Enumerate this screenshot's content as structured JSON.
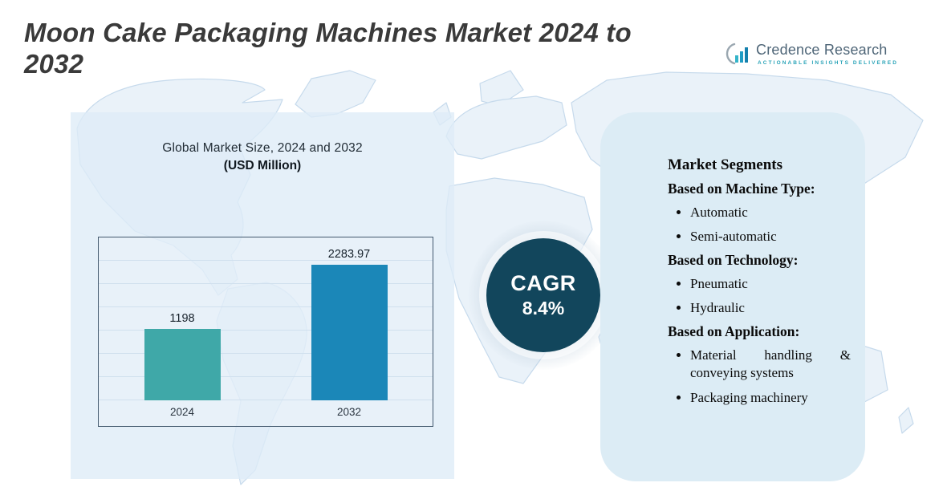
{
  "header": {
    "title": "Moon Cake Packaging Machines Market 2024 to\n2032"
  },
  "logo": {
    "brand": "Credence Research",
    "tagline": "Actionable Insights Delivered"
  },
  "chart_data": {
    "type": "bar",
    "title": "Global Market Size, 2024 and 2032",
    "subtitle": "(USD Million)",
    "categories": [
      "2024",
      "2032"
    ],
    "values": [
      1198,
      2283.97
    ],
    "value_labels": [
      "1198",
      "2283.97"
    ],
    "bar_colors": [
      "#3fa8a8",
      "#1b87b8"
    ],
    "xlabel": "",
    "ylabel": "",
    "ylim": [
      0,
      2500
    ],
    "grid": true,
    "legend": "none"
  },
  "cagr": {
    "label": "CAGR",
    "value": "8.4%",
    "circle_color": "#12465c"
  },
  "segments": {
    "title": "Market Segments",
    "groups": [
      {
        "heading": "Based on Machine Type:",
        "items": [
          "Automatic",
          "Semi-automatic"
        ]
      },
      {
        "heading": "Based on Technology:",
        "items": [
          "Pneumatic",
          "Hydraulic"
        ]
      },
      {
        "heading": "Based on Application:",
        "items": [
          "Material handling & conveying systems",
          "Packaging machinery"
        ]
      }
    ]
  }
}
